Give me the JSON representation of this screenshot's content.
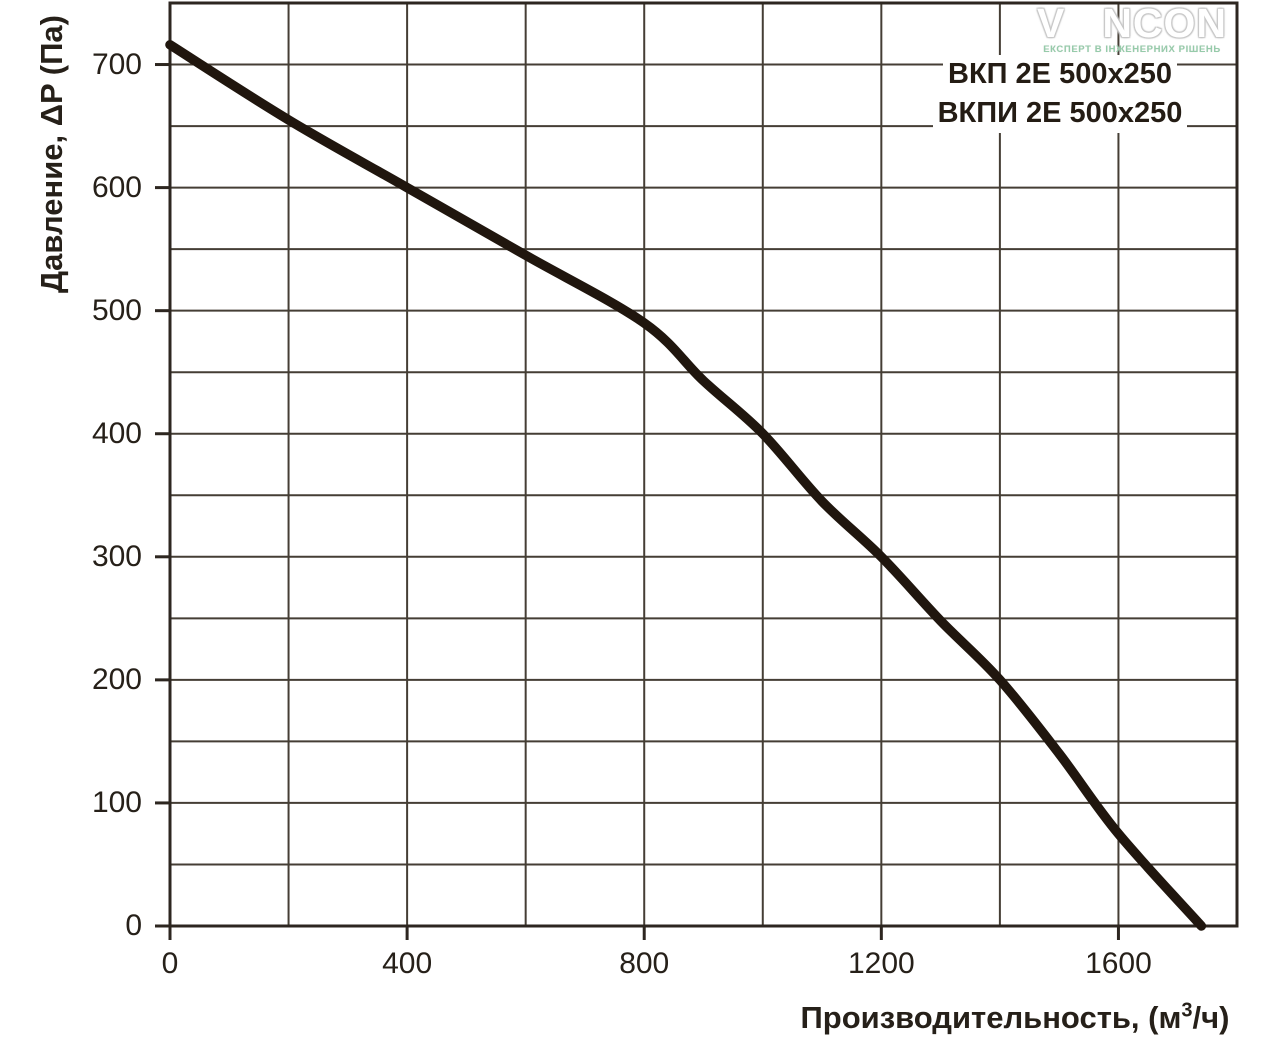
{
  "logo": {
    "brand_v": "V",
    "brand_rest": "NCON",
    "tagline": "ЕКСПЕРТ В ІНЖЕНЕРНИХ РІШЕНЬ",
    "letter_color": "#ffffff",
    "outline_color": "#c6c6c6",
    "flag_color": "#8fd2a5",
    "flag_accent": "#57b07f",
    "tagline_color": "#96cbaa"
  },
  "chart_data": {
    "type": "line",
    "title_lines": [
      "ВКП 2Е 500x250",
      "ВКПИ 2Е 500x250"
    ],
    "ylabel": "Давление, ΔP (Па)",
    "xlabel_pre": "Производительность, (м",
    "xlabel_sup": "3",
    "xlabel_post": "/ч)",
    "xlim": [
      0,
      1800
    ],
    "ylim": [
      0,
      750
    ],
    "x_grid_step": 200,
    "y_grid_step": 50,
    "x_tick_labels": [
      0,
      400,
      800,
      1200,
      1600
    ],
    "y_tick_labels": [
      0,
      100,
      200,
      300,
      400,
      500,
      600,
      700
    ],
    "grid": true,
    "legend": "none",
    "series": [
      {
        "name": "ВКП 2Е 500x250 / ВКПИ 2Е 500x250",
        "x_units": "м3/ч",
        "y_units": "Па",
        "points": [
          [
            0,
            716
          ],
          [
            200,
            655
          ],
          [
            400,
            600
          ],
          [
            600,
            545
          ],
          [
            800,
            490
          ],
          [
            900,
            443
          ],
          [
            1000,
            400
          ],
          [
            1100,
            345
          ],
          [
            1200,
            300
          ],
          [
            1300,
            248
          ],
          [
            1400,
            200
          ],
          [
            1500,
            140
          ],
          [
            1600,
            75
          ],
          [
            1740,
            0
          ]
        ],
        "color": "#20160e",
        "stroke_width": 9.5
      }
    ],
    "colors": {
      "background": "#ffffff",
      "grid": "#453e35",
      "axis": "#2d2620",
      "text": "#262019"
    }
  }
}
